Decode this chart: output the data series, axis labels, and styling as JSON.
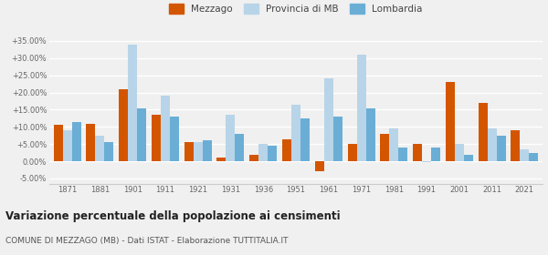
{
  "years": [
    1871,
    1881,
    1901,
    1911,
    1921,
    1931,
    1936,
    1951,
    1961,
    1971,
    1981,
    1991,
    2001,
    2011,
    2021
  ],
  "mezzago": [
    10.5,
    11.0,
    21.0,
    13.5,
    5.5,
    1.0,
    2.0,
    6.5,
    -3.0,
    5.0,
    8.0,
    5.0,
    23.0,
    17.0,
    9.0
  ],
  "provincia_mb": [
    9.0,
    7.5,
    34.0,
    19.0,
    5.5,
    13.5,
    5.0,
    16.5,
    24.0,
    31.0,
    9.5,
    -0.2,
    5.0,
    9.5,
    3.5
  ],
  "lombardia": [
    11.5,
    5.5,
    15.5,
    13.0,
    6.0,
    8.0,
    4.5,
    12.5,
    13.0,
    15.5,
    4.0,
    4.0,
    2.0,
    7.5,
    2.5
  ],
  "color_mezzago": "#d45500",
  "color_provincia": "#b8d4e8",
  "color_lombardia": "#6aaed6",
  "title": "Variazione percentuale della popolazione ai censimenti",
  "subtitle": "COMUNE DI MEZZAGO (MB) - Dati ISTAT - Elaborazione TUTTITALIA.IT",
  "ylim": [
    -6.5,
    38
  ],
  "yticks": [
    -5,
    0,
    5,
    10,
    15,
    20,
    25,
    30,
    35
  ],
  "background_color": "#f0f0f0"
}
